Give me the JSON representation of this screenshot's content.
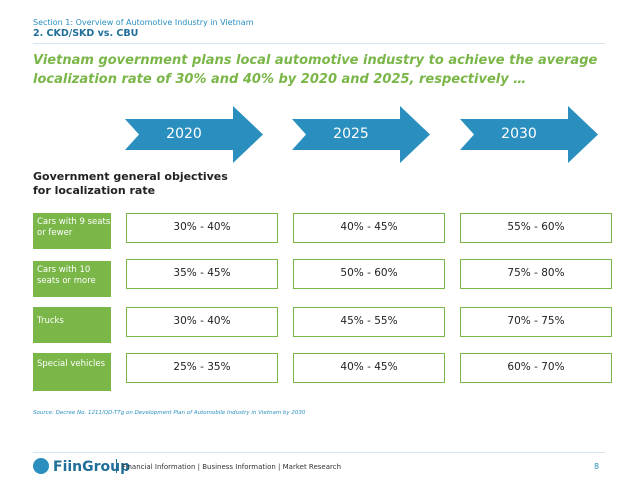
{
  "header": {
    "section": "Section 1: Overview of Automotive Industry in Vietnam",
    "subtitle": "2. CKD/SKD vs. CBU"
  },
  "headline": "Vietnam government plans local automotive industry to achieve the average localization rate of 30% and 40% by 2020 and 2025, respectively …",
  "years": [
    "2020",
    "2025",
    "2030"
  ],
  "objective_label": "Government general objectives for localization rate",
  "rows": [
    {
      "category": "Cars with 9 seats or fewer",
      "values": [
        "30% - 40%",
        "40% - 45%",
        "55% - 60%"
      ]
    },
    {
      "category": "Cars with 10 seats or more",
      "values": [
        "35% - 45%",
        "50% - 60%",
        "75% - 80%"
      ]
    },
    {
      "category": "Trucks",
      "values": [
        "30% - 40%",
        "45% - 55%",
        "70% - 75%"
      ]
    },
    {
      "category": "Special vehicles",
      "values": [
        "25% - 35%",
        "40% - 45%",
        "60% - 70%"
      ]
    }
  ],
  "source": "Source: Decree No. 1211/QD-TTg on Development Plan of Automobile Industry in Vietnam by 2030",
  "footer": {
    "logo": "FiinGroup",
    "text": "Financial Information | Business Information | Market Research",
    "page": "8"
  },
  "colors": {
    "accent": "#2a8fbf",
    "green": "#7ab648",
    "dark_blue": "#1f6f9a"
  }
}
